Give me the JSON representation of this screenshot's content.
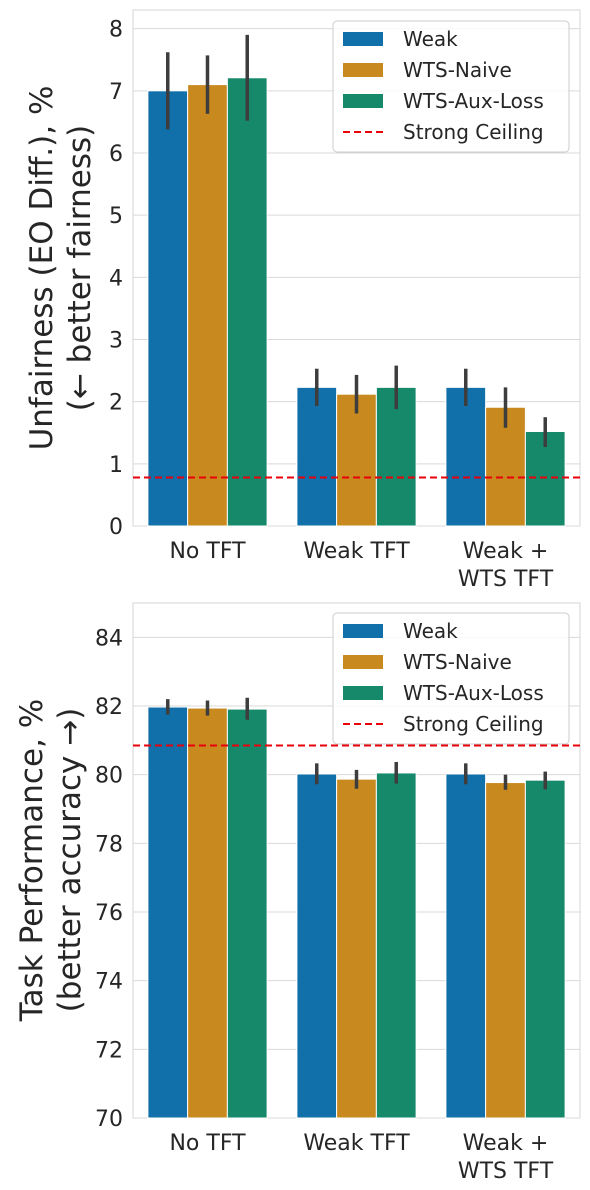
{
  "chart_data": [
    {
      "type": "bar",
      "title": "",
      "ylabel_lines": [
        "Unfairness (EO Diff.), %",
        "(← better fairness)"
      ],
      "xlabel": "",
      "categories": [
        "No TFT",
        "Weak TFT",
        "Weak + WTS TFT"
      ],
      "category_label_lines": [
        [
          "No TFT"
        ],
        [
          "Weak TFT"
        ],
        [
          "Weak +",
          "WTS TFT"
        ]
      ],
      "ylim": [
        0,
        8.3
      ],
      "yticks": [
        "0",
        "1",
        "2",
        "3",
        "4",
        "5",
        "6",
        "7",
        "8"
      ],
      "series": [
        {
          "name": "Weak",
          "color": "#1170aa",
          "values": [
            7.0,
            2.23,
            2.23
          ],
          "err_low": [
            6.38,
            1.93,
            1.93
          ],
          "err_high": [
            7.62,
            2.53,
            2.53
          ]
        },
        {
          "name": "WTS-Naive",
          "color": "#c8891f",
          "values": [
            7.1,
            2.12,
            1.91
          ],
          "err_low": [
            6.63,
            1.81,
            1.58
          ],
          "err_high": [
            7.57,
            2.43,
            2.23
          ]
        },
        {
          "name": "WTS-Aux-Loss",
          "color": "#16896b",
          "values": [
            7.21,
            2.23,
            1.52
          ],
          "err_low": [
            6.52,
            1.88,
            1.27
          ],
          "err_high": [
            7.9,
            2.58,
            1.75
          ]
        }
      ],
      "reference_line": {
        "name": "Strong Ceiling",
        "value": 0.78,
        "color": "#e8000b",
        "style": "dashed"
      },
      "legend": {
        "placement": "top-right",
        "entries": [
          "Weak",
          "WTS-Naive",
          "WTS-Aux-Loss",
          "Strong Ceiling"
        ]
      },
      "grid": "horizontal"
    },
    {
      "type": "bar",
      "title": "",
      "ylabel_lines": [
        "Task Performance, %",
        "(better accuracy →)"
      ],
      "xlabel": "",
      "categories": [
        "No TFT",
        "Weak TFT",
        "Weak + WTS TFT"
      ],
      "category_label_lines": [
        [
          "No TFT"
        ],
        [
          "Weak TFT"
        ],
        [
          "Weak +",
          "WTS TFT"
        ]
      ],
      "ylim": [
        70,
        85
      ],
      "yticks": [
        "70",
        "72",
        "74",
        "76",
        "78",
        "80",
        "82",
        "84"
      ],
      "series": [
        {
          "name": "Weak",
          "color": "#1170aa",
          "values": [
            81.97,
            80.02,
            80.02
          ],
          "err_low": [
            81.75,
            79.72,
            79.72
          ],
          "err_high": [
            82.2,
            80.33,
            80.33
          ]
        },
        {
          "name": "WTS-Naive",
          "color": "#c8891f",
          "values": [
            81.94,
            79.87,
            79.77
          ],
          "err_low": [
            81.72,
            79.59,
            79.56
          ],
          "err_high": [
            82.16,
            80.14,
            80.0
          ]
        },
        {
          "name": "WTS-Aux-Loss",
          "color": "#16896b",
          "values": [
            81.91,
            80.05,
            79.84
          ],
          "err_low": [
            81.6,
            79.74,
            79.57
          ],
          "err_high": [
            82.24,
            80.37,
            80.09
          ]
        }
      ],
      "reference_line": {
        "name": "Strong Ceiling",
        "value": 80.85,
        "color": "#e8000b",
        "style": "dashed"
      },
      "legend": {
        "placement": "top-right",
        "entries": [
          "Weak",
          "WTS-Naive",
          "WTS-Aux-Loss",
          "Strong Ceiling"
        ]
      },
      "grid": "horizontal"
    }
  ]
}
